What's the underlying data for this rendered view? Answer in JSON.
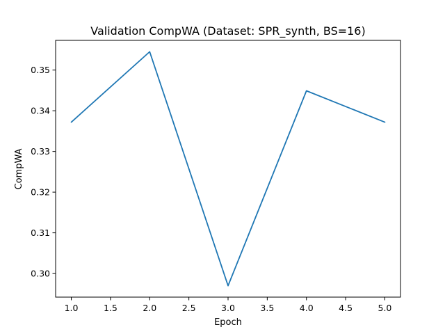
{
  "chart_data": {
    "type": "line",
    "title": "Validation CompWA (Dataset: SPR_synth, BS=16)",
    "xlabel": "Epoch",
    "ylabel": "CompWA",
    "x": [
      1.0,
      2.0,
      3.0,
      4.0,
      5.0
    ],
    "series": [
      {
        "name": "CompWA",
        "values": [
          0.3372,
          0.3545,
          0.297,
          0.3449,
          0.3372
        ],
        "color": "#1f77b4"
      }
    ],
    "xlim": [
      0.8,
      5.2
    ],
    "ylim": [
      0.2942,
      0.3573
    ],
    "xticks": [
      1.0,
      1.5,
      2.0,
      2.5,
      3.0,
      3.5,
      4.0,
      4.5,
      5.0
    ],
    "xtick_labels": [
      "1.0",
      "1.5",
      "2.0",
      "2.5",
      "3.0",
      "3.5",
      "4.0",
      "4.5",
      "5.0"
    ],
    "yticks": [
      0.3,
      0.31,
      0.32,
      0.33,
      0.34,
      0.35
    ],
    "ytick_labels": [
      "0.30",
      "0.31",
      "0.32",
      "0.33",
      "0.34",
      "0.35"
    ],
    "grid": false,
    "legend": "none"
  }
}
